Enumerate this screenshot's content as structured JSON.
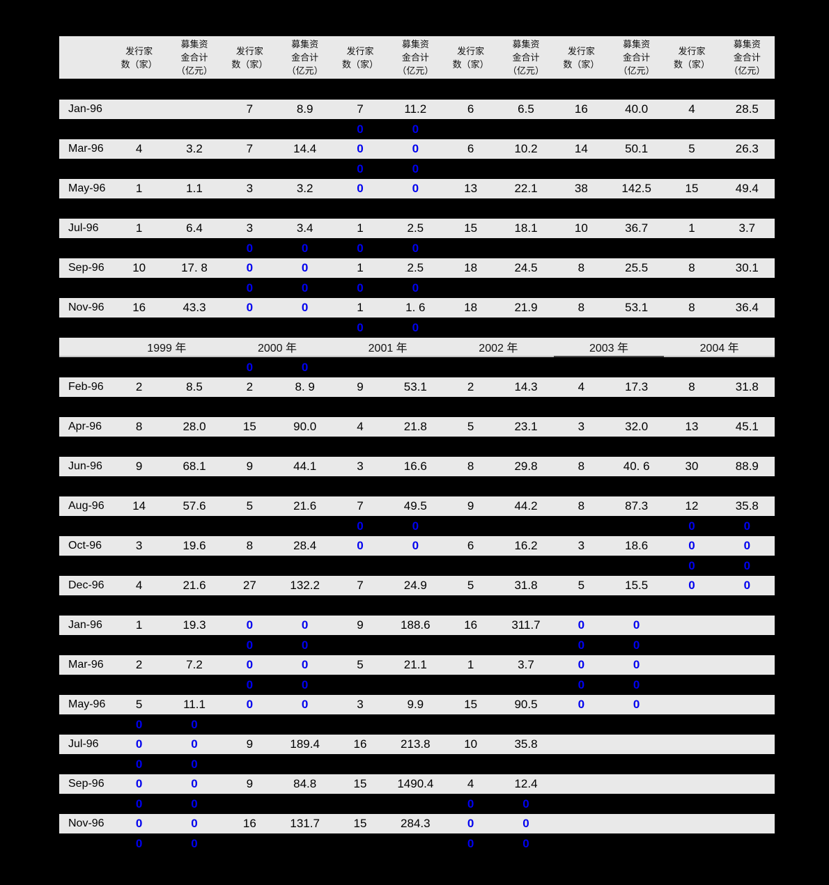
{
  "table": {
    "header": {
      "count_label": "发行家\n数（家）",
      "amount_label": "募集资\n金合计\n（亿元）",
      "pair_count": 6
    },
    "years": [
      "1999 年",
      "2000 年",
      "2001 年",
      "2002 年",
      "2003 年",
      "2004 年"
    ],
    "year_dark_underline_index": 4,
    "colors": {
      "page_bg": "#000000",
      "row_bg": "#e9e9e9",
      "text": "#000000",
      "zero_blue": "#0000ee",
      "year_underline": "#c3c3c3",
      "year_underline_dark": "#4a4a4a"
    },
    "rows": [
      {
        "type": "gap",
        "first": true,
        "zeros": []
      },
      {
        "type": "data",
        "label": "Jan-96",
        "cells": [
          "",
          "",
          "7",
          "8.9",
          "7",
          "11.2",
          "6",
          "6.5",
          "16",
          "40.0",
          "4",
          "28.5"
        ],
        "blue": []
      },
      {
        "type": "gap",
        "zeros": [
          4,
          5
        ]
      },
      {
        "type": "data",
        "label": "Mar-96",
        "cells": [
          "4",
          "3.2",
          "7",
          "14.4",
          "0",
          "0",
          "6",
          "10.2",
          "14",
          "50.1",
          "5",
          "26.3"
        ],
        "blue": [
          4,
          5
        ]
      },
      {
        "type": "gap",
        "zeros": [
          4,
          5
        ]
      },
      {
        "type": "data",
        "label": "May-96",
        "cells": [
          "1",
          "1.1",
          "3",
          "3.2",
          "0",
          "0",
          "13",
          "22.1",
          "38",
          "142.5",
          "15",
          "49.4"
        ],
        "blue": [
          4,
          5
        ]
      },
      {
        "type": "gap",
        "zeros": []
      },
      {
        "type": "data",
        "label": "Jul-96",
        "cells": [
          "1",
          "6.4",
          "3",
          "3.4",
          "1",
          "2.5",
          "15",
          "18.1",
          "10",
          "36.7",
          "1",
          "3.7"
        ],
        "blue": []
      },
      {
        "type": "gap",
        "zeros": [
          2,
          3,
          4,
          5
        ]
      },
      {
        "type": "data",
        "label": "Sep-96",
        "cells": [
          "10",
          "17. 8",
          "0",
          "0",
          "1",
          "2.5",
          "18",
          "24.5",
          "8",
          "25.5",
          "8",
          "30.1"
        ],
        "blue": [
          2,
          3
        ]
      },
      {
        "type": "gap",
        "zeros": [
          2,
          3,
          4,
          5
        ]
      },
      {
        "type": "data",
        "label": "Nov-96",
        "cells": [
          "16",
          "43.3",
          "0",
          "0",
          "1",
          "1. 6",
          "18",
          "21.9",
          "8",
          "53.1",
          "8",
          "36.4"
        ],
        "blue": [
          2,
          3
        ]
      },
      {
        "type": "gap",
        "zeros": [
          4,
          5
        ]
      },
      {
        "type": "year"
      },
      {
        "type": "gap",
        "zeros": [
          2,
          3
        ]
      },
      {
        "type": "data",
        "label": "Feb-96",
        "cells": [
          "2",
          "8.5",
          "2",
          "8. 9",
          "9",
          "53.1",
          "2",
          "14.3",
          "4",
          "17.3",
          "8",
          "31.8"
        ],
        "blue": []
      },
      {
        "type": "gap",
        "zeros": []
      },
      {
        "type": "data",
        "label": "Apr-96",
        "cells": [
          "8",
          "28.0",
          "15",
          "90.0",
          "4",
          "21.8",
          "5",
          "23.1",
          "3",
          "32.0",
          "13",
          "45.1"
        ],
        "blue": []
      },
      {
        "type": "gap",
        "zeros": []
      },
      {
        "type": "data",
        "label": "Jun-96",
        "cells": [
          "9",
          "68.1",
          "9",
          "44.1",
          "3",
          "16.6",
          "8",
          "29.8",
          "8",
          "40. 6",
          "30",
          "88.9"
        ],
        "blue": []
      },
      {
        "type": "gap",
        "zeros": []
      },
      {
        "type": "data",
        "label": "Aug-96",
        "cells": [
          "14",
          "57.6",
          "5",
          "21.6",
          "7",
          "49.5",
          "9",
          "44.2",
          "8",
          "87.3",
          "12",
          "35.8"
        ],
        "blue": []
      },
      {
        "type": "gap",
        "zeros": [
          4,
          5,
          10,
          11
        ]
      },
      {
        "type": "data",
        "label": "Oct-96",
        "cells": [
          "3",
          "19.6",
          "8",
          "28.4",
          "0",
          "0",
          "6",
          "16.2",
          "3",
          "18.6",
          "0",
          "0"
        ],
        "blue": [
          4,
          5,
          10,
          11
        ]
      },
      {
        "type": "gap",
        "zeros": [
          10,
          11
        ]
      },
      {
        "type": "data",
        "label": "Dec-96",
        "cells": [
          "4",
          "21.6",
          "27",
          "132.2",
          "7",
          "24.9",
          "5",
          "31.8",
          "5",
          "15.5",
          "0",
          "0"
        ],
        "blue": [
          10,
          11
        ]
      },
      {
        "type": "gap",
        "zeros": []
      },
      {
        "type": "data",
        "label": "Jan-96",
        "cells": [
          "1",
          "19.3",
          "0",
          "0",
          "9",
          "188.6",
          "16",
          "311.7",
          "0",
          "0",
          "",
          ""
        ],
        "blue": [
          2,
          3,
          8,
          9
        ]
      },
      {
        "type": "gap",
        "zeros": [
          2,
          3,
          8,
          9
        ]
      },
      {
        "type": "data",
        "label": "Mar-96",
        "cells": [
          "2",
          "7.2",
          "0",
          "0",
          "5",
          "21.1",
          "1",
          "3.7",
          "0",
          "0",
          "",
          ""
        ],
        "blue": [
          2,
          3,
          8,
          9
        ]
      },
      {
        "type": "gap",
        "zeros": [
          2,
          3,
          8,
          9
        ]
      },
      {
        "type": "data",
        "label": "May-96",
        "cells": [
          "5",
          "11.1",
          "0",
          "0",
          "3",
          "9.9",
          "15",
          "90.5",
          "0",
          "0",
          "",
          ""
        ],
        "blue": [
          2,
          3,
          8,
          9
        ]
      },
      {
        "type": "gap",
        "zeros": [
          0,
          1
        ]
      },
      {
        "type": "data",
        "label": "Jul-96",
        "cells": [
          "0",
          "0",
          "9",
          "189.4",
          "16",
          "213.8",
          "10",
          "35.8",
          "",
          "",
          "",
          ""
        ],
        "blue": [
          0,
          1
        ]
      },
      {
        "type": "gap",
        "zeros": [
          0,
          1
        ]
      },
      {
        "type": "data",
        "label": "Sep-96",
        "cells": [
          "0",
          "0",
          "9",
          "84.8",
          "15",
          "1490.4",
          "4",
          "12.4",
          "",
          "",
          "",
          ""
        ],
        "blue": [
          0,
          1
        ]
      },
      {
        "type": "gap",
        "zeros": [
          0,
          1,
          6,
          7
        ]
      },
      {
        "type": "data",
        "label": "Nov-96",
        "cells": [
          "0",
          "0",
          "16",
          "131.7",
          "15",
          "284.3",
          "0",
          "0",
          "",
          "",
          "",
          ""
        ],
        "blue": [
          0,
          1,
          6,
          7
        ]
      },
      {
        "type": "gap",
        "zeros": [
          0,
          1,
          6,
          7
        ]
      }
    ]
  }
}
